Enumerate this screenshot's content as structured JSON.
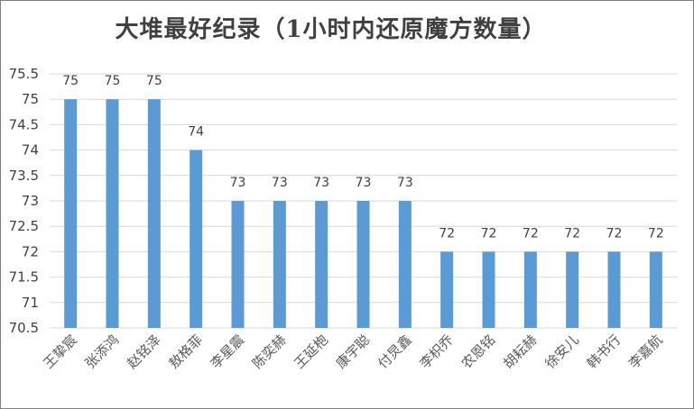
{
  "chart_data": {
    "type": "bar",
    "title": "大堆最好纪录（1小时内还原魔方数量）",
    "categories": [
      "王挚宸",
      "张添鸿",
      "赵铭泽",
      "敖格菲",
      "李星震",
      "陈奕赫",
      "王延枹",
      "康宇聪",
      "付炅鑫",
      "李枳乔",
      "农恩铭",
      "胡耘赫",
      "徐安儿",
      "韩书行",
      "李嘉航"
    ],
    "values": [
      75,
      75,
      75,
      74,
      73,
      73,
      73,
      73,
      73,
      72,
      72,
      72,
      72,
      72,
      72
    ],
    "ylim": [
      70.5,
      75.5
    ],
    "yticks": [
      "70.5",
      "71",
      "71.5",
      "72",
      "72.5",
      "73",
      "73.5",
      "74",
      "74.5",
      "75",
      "75.5"
    ],
    "grid": true,
    "bar_color": "#5b9bd5",
    "legend": "none"
  }
}
